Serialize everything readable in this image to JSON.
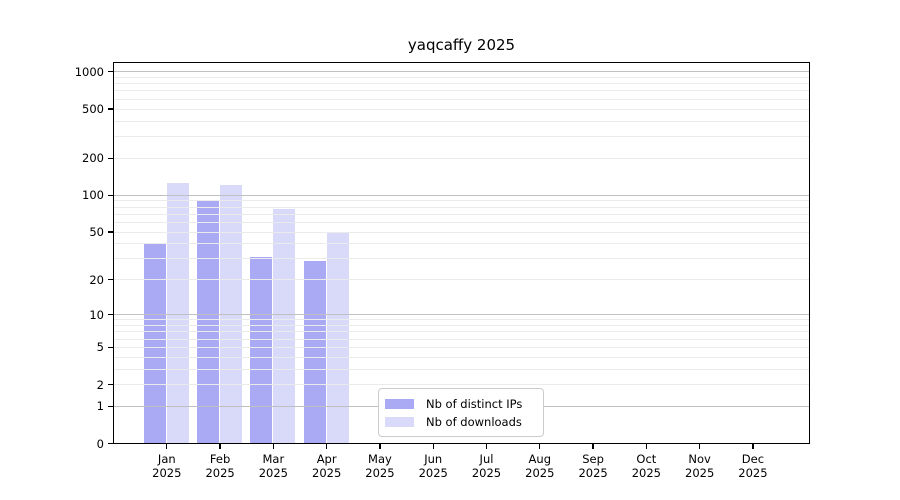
{
  "chart_data": {
    "type": "bar",
    "title": "yaqcaffy 2025",
    "categories": [
      "Jan",
      "Feb",
      "Mar",
      "Apr",
      "May",
      "Jun",
      "Jul",
      "Aug",
      "Sep",
      "Oct",
      "Nov",
      "Dec"
    ],
    "x_tick_second_line": "2025",
    "series": [
      {
        "name": "Nb of distinct IPs",
        "color": "#a9a9f4",
        "values": [
          40,
          89,
          31,
          29,
          0,
          0,
          0,
          0,
          0,
          0,
          0,
          0
        ]
      },
      {
        "name": "Nb of downloads",
        "color": "#d9d9fa",
        "values": [
          126,
          122,
          77,
          50,
          0,
          0,
          0,
          0,
          0,
          0,
          0,
          0
        ]
      }
    ],
    "yscale": "log1p",
    "ylim": [
      0,
      1160
    ],
    "y_ticks": [
      0,
      1,
      2,
      5,
      10,
      20,
      50,
      100,
      200,
      500,
      1000
    ],
    "grid": {
      "major_values": [
        1,
        10,
        100,
        1000
      ],
      "minor_values": [
        2,
        3,
        4,
        5,
        6,
        7,
        8,
        9,
        20,
        30,
        40,
        50,
        60,
        70,
        80,
        90,
        200,
        300,
        400,
        500,
        600,
        700,
        800,
        900
      ],
      "major_color": "#c0c0c0",
      "minor_color": "#ebebeb"
    },
    "legend": {
      "location": "lower-center-left",
      "items": [
        "Nb of distinct IPs",
        "Nb of downloads"
      ]
    }
  }
}
